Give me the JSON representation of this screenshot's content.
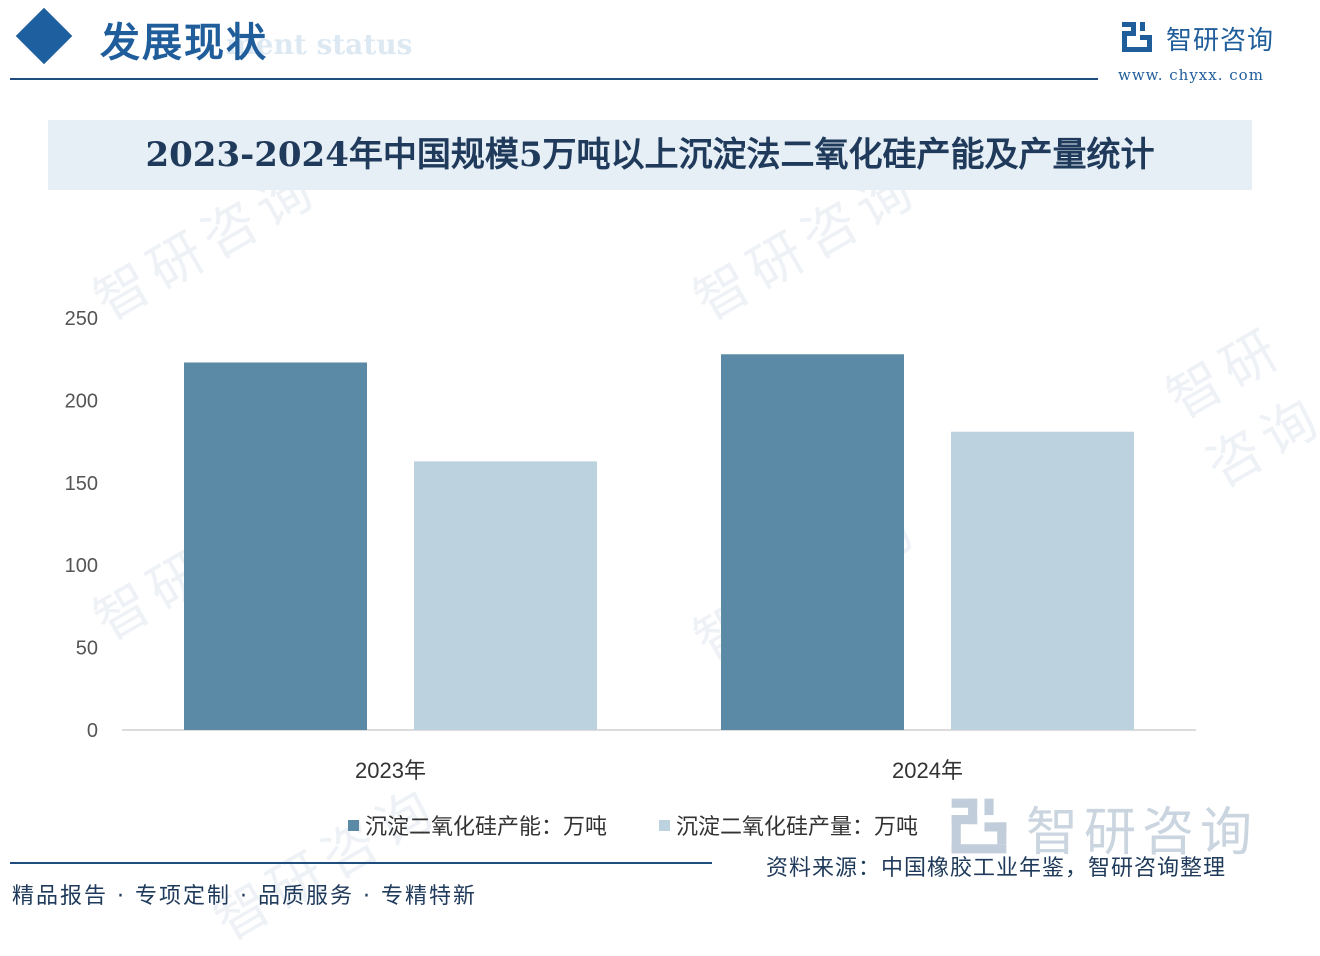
{
  "header": {
    "title": "发展现状",
    "subtitle": "ment status"
  },
  "logo": {
    "name": "智研咨询",
    "url": "www. chyxx. com",
    "icon": "zhiyan-logo-icon"
  },
  "chart_data": {
    "type": "bar",
    "title": "2023-2024年中国规模5万吨以上沉淀法二氧化硅产能及产量统计",
    "categories": [
      "2023年",
      "2024年"
    ],
    "series": [
      {
        "name": "沉淀二氧化硅产能：万吨",
        "values": [
          223,
          228
        ],
        "color": "#5b8aa6"
      },
      {
        "name": "沉淀二氧化硅产量：万吨",
        "values": [
          163,
          181
        ],
        "color": "#bcd2df"
      }
    ],
    "ylim": [
      0,
      250
    ],
    "yticks": [
      0,
      50,
      100,
      150,
      200,
      250
    ],
    "xlabel": "",
    "ylabel": "",
    "grid": false,
    "legend_position": "bottom"
  },
  "source": "资料来源：中国橡胶工业年鉴，智研咨询整理",
  "footer": {
    "tagline": "精品报告 · 专项定制 · 品质服务 · 专精特新"
  },
  "watermark": {
    "text": "智研咨询"
  }
}
